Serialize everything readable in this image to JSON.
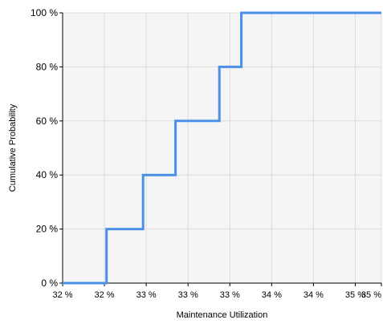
{
  "chart_data": {
    "type": "line",
    "subtype": "step-cdf",
    "title": "",
    "xlabel": "Maintenance Utilization",
    "ylabel": "Cumulative Probability",
    "xlim": [
      32.0,
      35.05
    ],
    "ylim": [
      0,
      100
    ],
    "x_ticks": [
      32.0,
      32.4,
      32.8,
      33.2,
      33.6,
      34.0,
      34.4,
      34.8,
      35.2
    ],
    "x_tick_labels": [
      "32 %",
      "32 %",
      "33 %",
      "33 %",
      "33 %",
      "34 %",
      "34 %",
      "35 %",
      "35 %"
    ],
    "y_ticks": [
      0,
      20,
      40,
      60,
      80,
      100
    ],
    "y_tick_labels": [
      "0 %",
      "20 %",
      "40 %",
      "60 %",
      "80 %",
      "100 %"
    ],
    "grid": true,
    "legend": "none",
    "series": [
      {
        "color": "#4a8fe8",
        "points": [
          {
            "x": 32.0,
            "y": 0
          },
          {
            "x": 32.42,
            "y": 0
          },
          {
            "x": 32.42,
            "y": 20
          },
          {
            "x": 32.77,
            "y": 20
          },
          {
            "x": 32.77,
            "y": 40
          },
          {
            "x": 33.08,
            "y": 40
          },
          {
            "x": 33.08,
            "y": 60
          },
          {
            "x": 33.5,
            "y": 60
          },
          {
            "x": 33.5,
            "y": 80
          },
          {
            "x": 33.71,
            "y": 80
          },
          {
            "x": 33.71,
            "y": 100
          },
          {
            "x": 35.05,
            "y": 100
          }
        ]
      }
    ],
    "colors": {
      "plot_background": "#f5f5f5",
      "grid": "#dcdcdc",
      "axis": "#000000"
    }
  }
}
